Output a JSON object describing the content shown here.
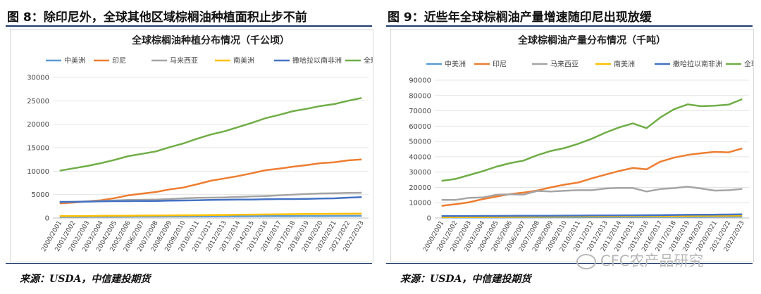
{
  "left": {
    "fig_title": "图 8：除印尼外，全球其他区域棕榈油种植面积止步不前",
    "source": "来源：USDA，中信建投期货"
  },
  "right": {
    "fig_title": "图 9：近些年全球棕榈油产量增速随印尼出现放缓",
    "source": "来源：USDA，中信建投期货"
  },
  "watermark": {
    "text": "CFC农产品研究",
    "icon": "wechat-icon"
  },
  "chart_data": [
    {
      "type": "line",
      "title": "全球棕榈油种植分布情况（千公顷）",
      "categories": [
        "2000/2001",
        "2001/2002",
        "2002/2003",
        "2003/2004",
        "2004/2005",
        "2005/2006",
        "2006/2007",
        "2007/2008",
        "2008/2009",
        "2009/2010",
        "2010/2011",
        "2011/2012",
        "2012/2013",
        "2013/2014",
        "2014/2015",
        "2015/2016",
        "2016/2017",
        "2017/2018",
        "2018/2019",
        "2019/2020",
        "2020/2021",
        "2021/2022",
        "2022/2023"
      ],
      "ylim": [
        0,
        30000
      ],
      "yticks": [
        0,
        5000,
        10000,
        15000,
        20000,
        25000,
        30000
      ],
      "yticklabels": [
        "0",
        "5000",
        "10000",
        "15000",
        "20000",
        "25000",
        "30000"
      ],
      "grid": true,
      "legend_position": "top",
      "series": [
        {
          "name": "中美洲",
          "color": "#5b9bd5",
          "values": [
            250,
            260,
            270,
            280,
            290,
            300,
            310,
            320,
            330,
            340,
            350,
            360,
            370,
            380,
            390,
            400,
            410,
            420,
            430,
            440,
            450,
            460,
            470
          ]
        },
        {
          "name": "印尼",
          "color": "#ed7d31",
          "values": [
            3100,
            3300,
            3550,
            3800,
            4250,
            4850,
            5200,
            5550,
            6100,
            6500,
            7200,
            7950,
            8450,
            8950,
            9550,
            10200,
            10550,
            10950,
            11300,
            11700,
            11900,
            12300,
            12500
          ]
        },
        {
          "name": "马来西亚",
          "color": "#a5a5a5",
          "values": [
            3350,
            3450,
            3550,
            3650,
            3750,
            3850,
            3900,
            3950,
            4050,
            4200,
            4300,
            4350,
            4400,
            4500,
            4600,
            4700,
            4850,
            5000,
            5150,
            5250,
            5300,
            5350,
            5400
          ]
        },
        {
          "name": "南美洲",
          "color": "#ffc000",
          "values": [
            400,
            420,
            440,
            460,
            480,
            500,
            520,
            540,
            560,
            580,
            600,
            640,
            660,
            700,
            730,
            770,
            800,
            830,
            860,
            880,
            900,
            920,
            950
          ]
        },
        {
          "name": "撒哈拉以南非洲",
          "color": "#4472c4",
          "values": [
            3450,
            3450,
            3500,
            3550,
            3600,
            3600,
            3650,
            3650,
            3700,
            3750,
            3800,
            3850,
            3900,
            3950,
            3950,
            4000,
            4050,
            4050,
            4100,
            4150,
            4200,
            4350,
            4450
          ]
        },
        {
          "name": "全球",
          "color": "#70ad47",
          "values": [
            10100,
            10600,
            11100,
            11700,
            12400,
            13200,
            13700,
            14200,
            15100,
            15900,
            16900,
            17800,
            18500,
            19400,
            20300,
            21300,
            22000,
            22800,
            23300,
            23900,
            24300,
            25000,
            25600
          ]
        }
      ]
    },
    {
      "type": "line",
      "title": "全球棕榈油产量分布情况（千吨）",
      "categories": [
        "2000/2001",
        "2001/2002",
        "2002/2003",
        "2003/2004",
        "2004/2005",
        "2005/2006",
        "2006/2007",
        "2007/2008",
        "2008/2009",
        "2009/2010",
        "2010/2011",
        "2011/2012",
        "2012/2013",
        "2013/2014",
        "2014/2015",
        "2015/2016",
        "2016/2017",
        "2017/2018",
        "2018/2019",
        "2019/2020",
        "2020/2021",
        "2021/2022",
        "2022/2023"
      ],
      "ylim": [
        0,
        90000
      ],
      "yticks": [
        0,
        10000,
        20000,
        30000,
        40000,
        50000,
        60000,
        70000,
        80000,
        90000
      ],
      "yticklabels": [
        "0",
        "10000",
        "20000",
        "30000",
        "40000",
        "50000",
        "60000",
        "70000",
        "80000",
        "90000"
      ],
      "grid": true,
      "legend_position": "top",
      "series": [
        {
          "name": "中美洲",
          "color": "#5b9bd5",
          "values": [
            300,
            320,
            340,
            360,
            380,
            400,
            420,
            450,
            480,
            500,
            520,
            560,
            600,
            620,
            650,
            700,
            720,
            760,
            800,
            820,
            850,
            880,
            900
          ]
        },
        {
          "name": "印尼",
          "color": "#ed7d31",
          "values": [
            8000,
            9000,
            10300,
            12300,
            14000,
            15600,
            16600,
            18000,
            20000,
            21800,
            23200,
            25900,
            28400,
            30700,
            32700,
            31800,
            36800,
            39400,
            41200,
            42300,
            43200,
            42900,
            45400
          ]
        },
        {
          "name": "马来西亚",
          "color": "#a5a5a5",
          "values": [
            11900,
            11800,
            13200,
            13400,
            15200,
            15500,
            15300,
            17700,
            17300,
            17800,
            18200,
            18200,
            19300,
            19700,
            19600,
            17300,
            18900,
            19500,
            20500,
            19300,
            17900,
            18200,
            19000
          ]
        },
        {
          "name": "南美洲",
          "color": "#ffc000",
          "values": [
            500,
            550,
            600,
            650,
            700,
            750,
            800,
            850,
            900,
            950,
            1000,
            1050,
            1100,
            1150,
            1200,
            1250,
            1300,
            1350,
            1400,
            1450,
            1500,
            1550,
            1600
          ]
        },
        {
          "name": "撒哈拉以南非洲",
          "color": "#4472c4",
          "values": [
            1300,
            1320,
            1350,
            1380,
            1400,
            1420,
            1450,
            1480,
            1500,
            1550,
            1600,
            1650,
            1700,
            1750,
            1800,
            1850,
            1900,
            2000,
            2100,
            2150,
            2200,
            2300,
            2400
          ]
        },
        {
          "name": "全球",
          "color": "#70ad47",
          "values": [
            24300,
            25500,
            28000,
            30600,
            33500,
            35800,
            37500,
            41000,
            43800,
            45700,
            48500,
            51800,
            55800,
            59200,
            61800,
            58700,
            65600,
            71000,
            74200,
            73000,
            73400,
            74000,
            77600
          ]
        }
      ]
    }
  ]
}
